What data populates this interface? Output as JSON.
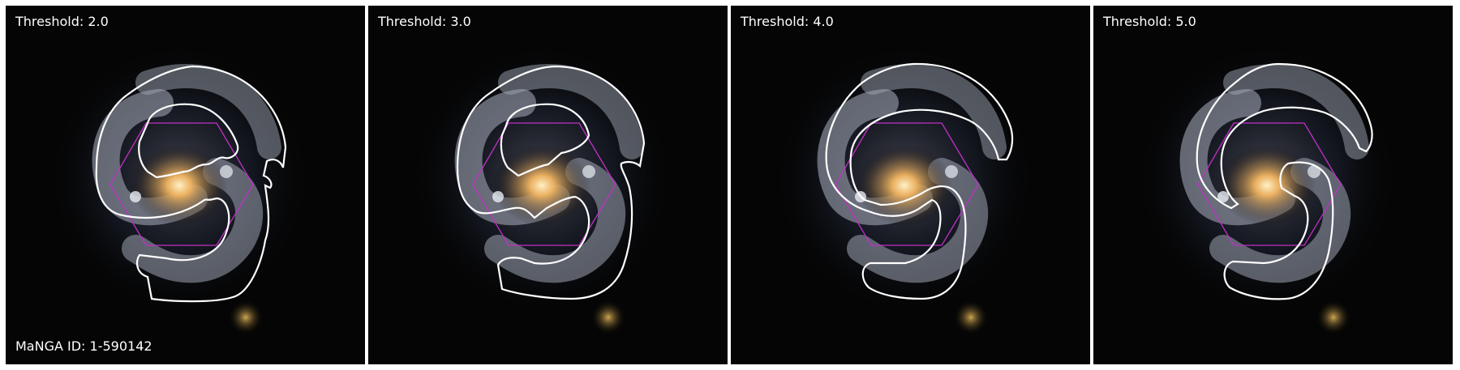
{
  "figure": {
    "manga_id_label": "MaNGA ID: 1-590142",
    "panels": [
      {
        "threshold_label": "Threshold: 2.0"
      },
      {
        "threshold_label": "Threshold: 3.0"
      },
      {
        "threshold_label": "Threshold: 4.0"
      },
      {
        "threshold_label": "Threshold: 5.0"
      }
    ]
  },
  "colors": {
    "contour": "#ffffff",
    "hexagon": "#c030c8",
    "sky": "#050505",
    "bulge": "#ffc060",
    "arms": "#b8bcc8",
    "companion": "#c89848"
  }
}
